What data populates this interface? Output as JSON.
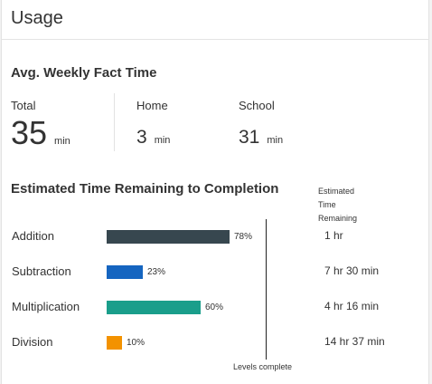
{
  "header": {
    "title": "Usage"
  },
  "weekly": {
    "title": "Avg. Weekly Fact Time",
    "total": {
      "label": "Total",
      "value": "35",
      "unit": "min"
    },
    "home": {
      "label": "Home",
      "value": "3",
      "unit": "min"
    },
    "school": {
      "label": "School",
      "value": "31",
      "unit": "min"
    }
  },
  "completion": {
    "title": "Estimated Time Remaining to Completion",
    "remaining_header": "Estimated Time Remaining",
    "axis_label": "Levels complete"
  },
  "chart_data": {
    "type": "bar",
    "orientation": "horizontal",
    "categories": [
      "Addition",
      "Subtraction",
      "Multiplication",
      "Division"
    ],
    "values": [
      78,
      23,
      60,
      10
    ],
    "value_labels": [
      "78%",
      "23%",
      "60%",
      "10%"
    ],
    "unit": "%",
    "xlim": [
      0,
      100
    ],
    "colors": [
      "#37474f",
      "#1565c0",
      "#1a9e8b",
      "#f39200"
    ],
    "xlabel": "Levels complete",
    "remaining": [
      "1 hr",
      "7 hr 30 min",
      "4 hr 16 min",
      "14 hr 37 min"
    ]
  }
}
